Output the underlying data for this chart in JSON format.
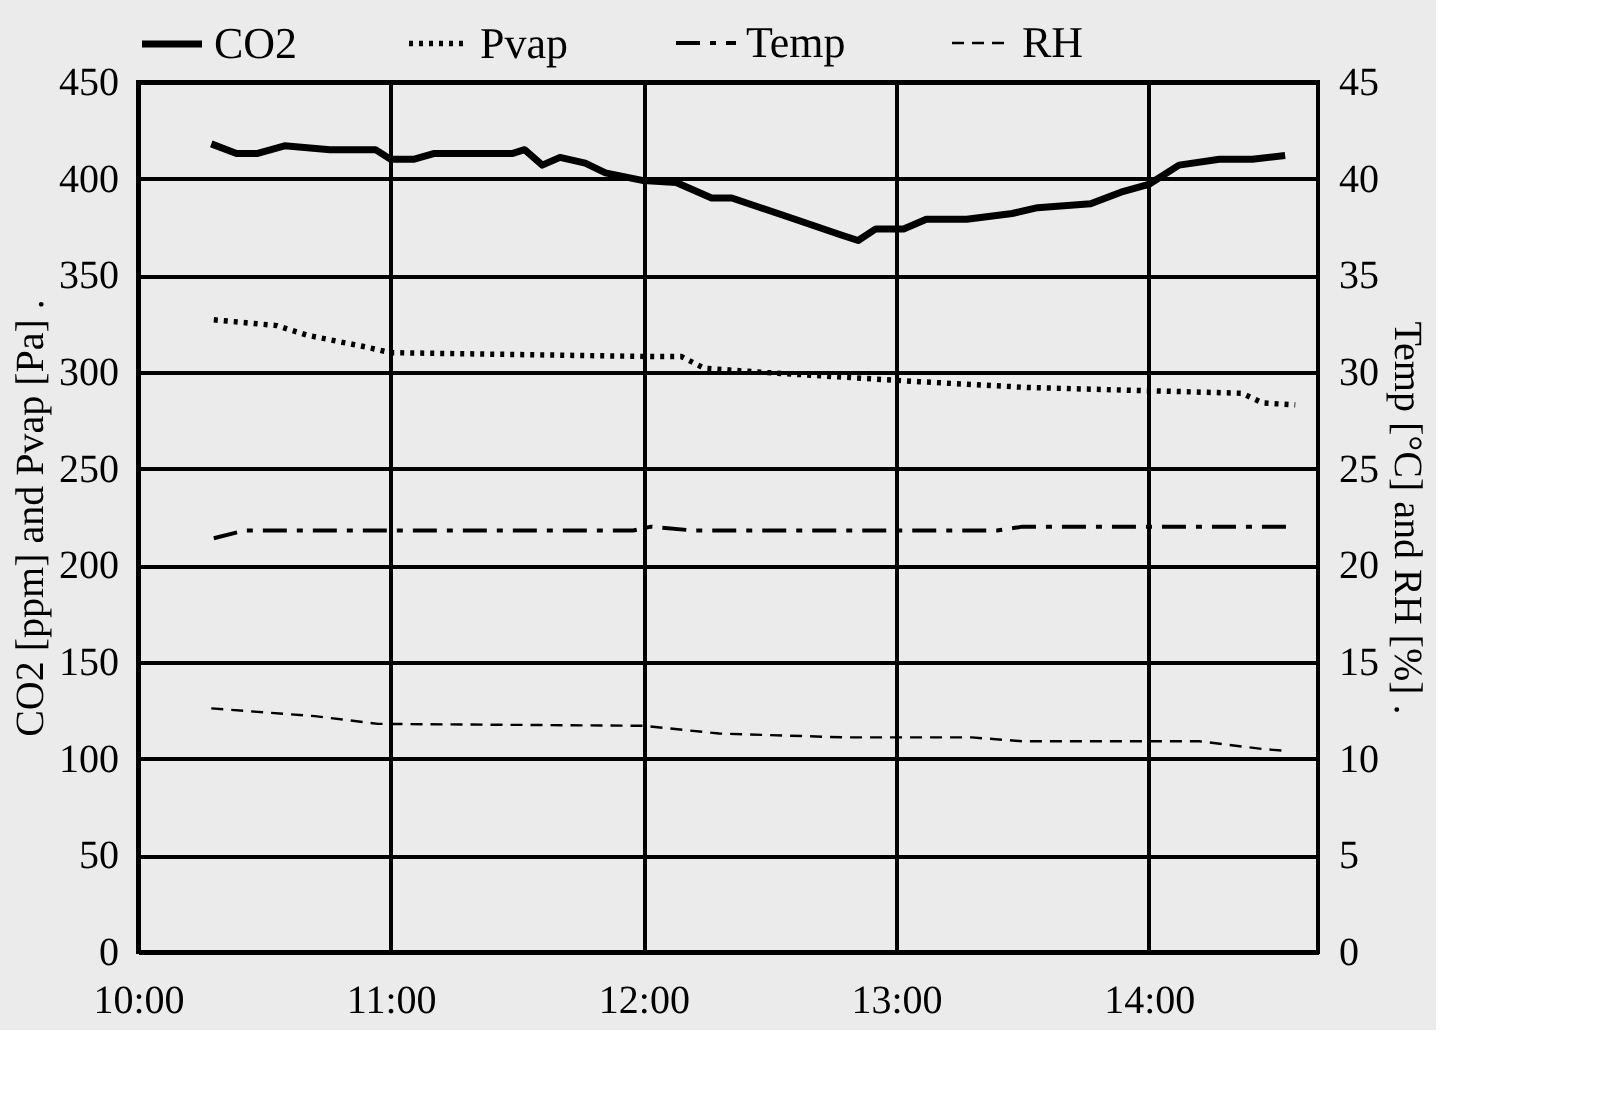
{
  "chart_data": {
    "type": "line",
    "xlabel": null,
    "ylabel": "CO2 [ppm] and Pvap [Pa] .",
    "y2label": "Temp [°C] and RH [%] .",
    "xlim": [
      10,
      14.67
    ],
    "xticks": [
      {
        "value": 10,
        "label": "10:00"
      },
      {
        "value": 11,
        "label": "11:00"
      },
      {
        "value": 12,
        "label": "12:00"
      },
      {
        "value": 13,
        "label": "13:00"
      },
      {
        "value": 14,
        "label": "14:00"
      }
    ],
    "ylim": [
      0,
      450
    ],
    "yticks": [
      0,
      50,
      100,
      150,
      200,
      250,
      300,
      350,
      400,
      450
    ],
    "y2lim": [
      0,
      45
    ],
    "y2ticks": [
      0,
      5,
      10,
      15,
      20,
      25,
      30,
      35,
      40,
      45
    ],
    "grid": true,
    "legend": "top",
    "marker": "none",
    "series": [
      {
        "name": "CO2",
        "color": "#000000",
        "line_style": "solid",
        "x": [
          10.29,
          10.39,
          10.47,
          10.58,
          10.76,
          10.94,
          11.0,
          11.09,
          11.17,
          11.48,
          11.53,
          11.6,
          11.67,
          11.77,
          11.85,
          12.0,
          12.13,
          12.27,
          12.35,
          12.6,
          12.78,
          12.85,
          12.92,
          13.03,
          13.12,
          13.28,
          13.46,
          13.56,
          13.77,
          13.89,
          14.0,
          14.12,
          14.28,
          14.41,
          14.54
        ],
        "values": [
          418,
          413,
          413,
          417,
          415,
          415,
          410,
          410,
          413,
          413,
          415,
          407,
          411,
          408,
          403,
          399,
          398,
          390,
          390,
          379,
          371,
          368,
          374,
          374,
          379,
          379,
          382,
          385,
          387,
          393,
          397,
          407,
          410,
          410,
          412
        ]
      },
      {
        "name": "Pvap",
        "color": "#000000",
        "line_style": "dotted",
        "x": [
          10.3,
          10.55,
          10.67,
          10.9,
          11.0,
          12.03,
          12.15,
          12.24,
          12.45,
          13.09,
          13.52,
          14.37,
          14.45,
          14.58
        ],
        "values": [
          327,
          324,
          319,
          313,
          310,
          308,
          308,
          302,
          300,
          295,
          292,
          289,
          284,
          283
        ]
      },
      {
        "name": "Temp",
        "color": "#000000",
        "line_style": "dashdot",
        "axis": "y2",
        "x": [
          10.3,
          10.42,
          11.96,
          12.03,
          12.2,
          13.4,
          13.5,
          14.55
        ],
        "values": [
          21.4,
          21.8,
          21.8,
          22.0,
          21.8,
          21.8,
          22.0,
          22.0
        ]
      },
      {
        "name": "RH",
        "color": "#000000",
        "line_style": "dashed",
        "axis": "y2",
        "x": [
          10.29,
          10.7,
          10.95,
          12.0,
          12.3,
          12.8,
          13.3,
          13.5,
          14.2,
          14.45,
          14.55
        ],
        "values": [
          12.6,
          12.2,
          11.8,
          11.7,
          11.3,
          11.1,
          11.1,
          10.9,
          10.9,
          10.5,
          10.4
        ]
      }
    ]
  }
}
